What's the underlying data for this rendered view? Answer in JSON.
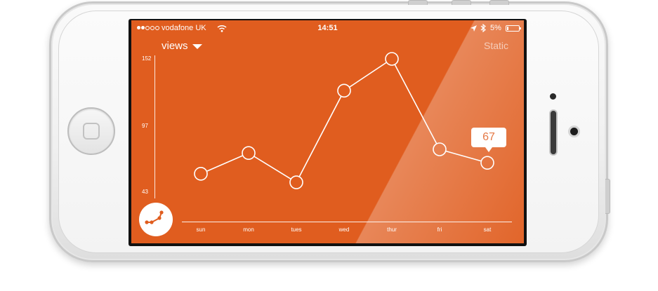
{
  "status_bar": {
    "carrier": "vodafone UK",
    "time": "14:51",
    "battery": "5%",
    "signal_bars": 2,
    "icons": [
      "wifi-icon",
      "location-icon",
      "bluetooth-icon",
      "battery-icon"
    ]
  },
  "header": {
    "metric": "views",
    "mode": "Static"
  },
  "colors": {
    "background": "#e05d1f",
    "foreground": "#ffffff"
  },
  "chart_data": {
    "type": "line",
    "categories": [
      "sun",
      "mon",
      "tues",
      "wed",
      "thur",
      "fri",
      "sat"
    ],
    "series": [
      {
        "values": [
          58,
          75,
          51,
          126,
          152,
          78,
          67
        ]
      }
    ],
    "ylim": [
      43,
      152
    ],
    "yticks": [
      "152",
      "97",
      "43"
    ],
    "highlighted": {
      "category": "sat",
      "label": "67"
    },
    "grid": false
  }
}
